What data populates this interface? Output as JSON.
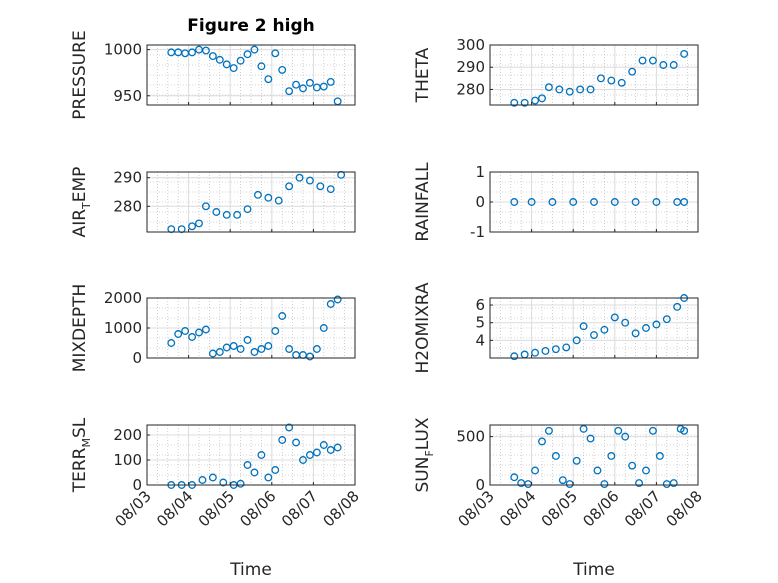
{
  "figure": {
    "title": "Figure 2 high"
  },
  "colors": {
    "marker": "#0072BD",
    "axis": "#262626",
    "grid": "#dcdcdc",
    "minor_grid": "#b0b0b0"
  },
  "x_axis": {
    "ticks": [
      "08/03",
      "08/04",
      "08/05",
      "08/06",
      "08/07",
      "08/08"
    ],
    "label": "Time"
  },
  "chart_data": [
    {
      "type": "scatter",
      "title": "Figure 2 high",
      "ylabel": "PRESSURE",
      "ylim": [
        940,
        1005
      ],
      "yticks": [
        "950",
        "1000"
      ],
      "xlabel": "",
      "x": [
        "08/03 14:00",
        "08/03 18:00",
        "08/03 22:00",
        "08/04 02:00",
        "08/04 06:00",
        "08/04 10:00",
        "08/04 14:00",
        "08/04 18:00",
        "08/04 22:00",
        "08/05 02:00",
        "08/05 06:00",
        "08/05 10:00",
        "08/05 14:00",
        "08/05 18:00",
        "08/05 22:00",
        "08/06 02:00",
        "08/06 06:00",
        "08/06 10:00",
        "08/06 14:00",
        "08/06 18:00",
        "08/06 22:00",
        "08/07 02:00",
        "08/07 06:00",
        "08/07 10:00",
        "08/07 14:00"
      ],
      "y": [
        997,
        997,
        996,
        997,
        1000,
        999,
        993,
        989,
        984,
        980,
        988,
        995,
        1000,
        982,
        968,
        996,
        978,
        955,
        962,
        958,
        964,
        959,
        960,
        965,
        944
      ],
      "grid": true
    },
    {
      "type": "scatter",
      "ylabel": "THETA",
      "ylim": [
        273,
        300
      ],
      "yticks": [
        "280",
        "290",
        "300"
      ],
      "x": [
        "08/03 14:00",
        "08/03 20:00",
        "08/04 02:00",
        "08/04 06:00",
        "08/04 10:00",
        "08/04 16:00",
        "08/04 22:00",
        "08/05 04:00",
        "08/05 10:00",
        "08/05 16:00",
        "08/05 22:00",
        "08/06 04:00",
        "08/06 10:00",
        "08/06 16:00",
        "08/06 22:00",
        "08/07 04:00",
        "08/07 10:00",
        "08/07 16:00"
      ],
      "y": [
        274,
        274,
        275,
        276,
        281,
        280,
        279,
        280,
        280,
        285,
        284,
        283,
        288,
        293,
        293,
        291,
        291,
        296
      ],
      "grid": true
    },
    {
      "type": "scatter",
      "ylabel": "AIR_TEMP",
      "ylim": [
        271,
        292
      ],
      "yticks": [
        "280",
        "290"
      ],
      "x": [
        "08/03 14:00",
        "08/03 20:00",
        "08/04 02:00",
        "08/04 06:00",
        "08/04 10:00",
        "08/04 16:00",
        "08/04 22:00",
        "08/05 04:00",
        "08/05 10:00",
        "08/05 16:00",
        "08/05 22:00",
        "08/06 04:00",
        "08/06 10:00",
        "08/06 16:00",
        "08/06 22:00",
        "08/07 04:00",
        "08/07 10:00",
        "08/07 16:00"
      ],
      "y": [
        272,
        272,
        273,
        274,
        280,
        278,
        277,
        277,
        279,
        284,
        283,
        282,
        287,
        290,
        289,
        287,
        286,
        291
      ],
      "grid": true
    },
    {
      "type": "scatter",
      "ylabel": "RAINFALL",
      "ylim": [
        -1,
        1
      ],
      "yticks": [
        "-1",
        "0",
        "1"
      ],
      "x": [
        "08/03 14:00",
        "08/04 00:00",
        "08/04 12:00",
        "08/05 00:00",
        "08/05 12:00",
        "08/06 00:00",
        "08/06 12:00",
        "08/07 00:00",
        "08/07 12:00",
        "08/07 16:00"
      ],
      "y": [
        0,
        0,
        0,
        0,
        0,
        0,
        0,
        0,
        0,
        0
      ],
      "grid": true
    },
    {
      "type": "scatter",
      "ylabel": "MIXDEPTH",
      "ylim": [
        0,
        2000
      ],
      "yticks": [
        "0",
        "1000",
        "2000"
      ],
      "x": [
        "08/03 14:00",
        "08/03 18:00",
        "08/03 22:00",
        "08/04 02:00",
        "08/04 06:00",
        "08/04 10:00",
        "08/04 14:00",
        "08/04 18:00",
        "08/04 22:00",
        "08/05 02:00",
        "08/05 06:00",
        "08/05 10:00",
        "08/05 14:00",
        "08/05 18:00",
        "08/05 22:00",
        "08/06 02:00",
        "08/06 06:00",
        "08/06 10:00",
        "08/06 14:00",
        "08/06 18:00",
        "08/06 22:00",
        "08/07 02:00",
        "08/07 06:00",
        "08/07 10:00",
        "08/07 14:00"
      ],
      "y": [
        500,
        800,
        900,
        700,
        850,
        950,
        150,
        200,
        350,
        400,
        300,
        600,
        200,
        300,
        400,
        900,
        1400,
        300,
        100,
        100,
        50,
        300,
        1000,
        1800,
        1950
      ],
      "grid": true
    },
    {
      "type": "scatter",
      "ylabel": "H2OMIXRA",
      "ylim": [
        3.0,
        6.4
      ],
      "yticks": [
        "4",
        "5",
        "6"
      ],
      "x": [
        "08/03 14:00",
        "08/03 20:00",
        "08/04 02:00",
        "08/04 08:00",
        "08/04 14:00",
        "08/04 20:00",
        "08/05 02:00",
        "08/05 06:00",
        "08/05 12:00",
        "08/05 18:00",
        "08/06 00:00",
        "08/06 06:00",
        "08/06 12:00",
        "08/06 18:00",
        "08/07 00:00",
        "08/07 06:00",
        "08/07 12:00",
        "08/07 16:00"
      ],
      "y": [
        3.1,
        3.2,
        3.3,
        3.4,
        3.5,
        3.6,
        4.0,
        4.8,
        4.3,
        4.6,
        5.3,
        5.0,
        4.4,
        4.7,
        4.9,
        5.2,
        5.9,
        6.4
      ],
      "grid": true
    },
    {
      "type": "scatter",
      "ylabel": "TERR_MSL",
      "ylim": [
        0,
        240
      ],
      "yticks": [
        "0",
        "100",
        "200"
      ],
      "x": [
        "08/03 14:00",
        "08/03 20:00",
        "08/04 02:00",
        "08/04 08:00",
        "08/04 14:00",
        "08/04 20:00",
        "08/05 02:00",
        "08/05 06:00",
        "08/05 10:00",
        "08/05 14:00",
        "08/05 18:00",
        "08/05 22:00",
        "08/06 02:00",
        "08/06 06:00",
        "08/06 10:00",
        "08/06 14:00",
        "08/06 18:00",
        "08/06 22:00",
        "08/07 02:00",
        "08/07 06:00",
        "08/07 10:00",
        "08/07 14:00"
      ],
      "y": [
        0,
        0,
        0,
        20,
        30,
        10,
        0,
        5,
        80,
        50,
        120,
        30,
        60,
        180,
        230,
        170,
        100,
        120,
        130,
        160,
        140,
        150
      ],
      "grid": true
    },
    {
      "type": "scatter",
      "ylabel": "SUN_FLUX",
      "ylim": [
        0,
        620
      ],
      "yticks": [
        "0",
        "500"
      ],
      "x": [
        "08/03 14:00",
        "08/03 18:00",
        "08/03 22:00",
        "08/04 02:00",
        "08/04 06:00",
        "08/04 10:00",
        "08/04 14:00",
        "08/04 18:00",
        "08/04 22:00",
        "08/05 02:00",
        "08/05 06:00",
        "08/05 10:00",
        "08/05 14:00",
        "08/05 18:00",
        "08/05 22:00",
        "08/06 02:00",
        "08/06 06:00",
        "08/06 10:00",
        "08/06 14:00",
        "08/06 18:00",
        "08/06 22:00",
        "08/07 02:00",
        "08/07 06:00",
        "08/07 10:00",
        "08/07 14:00",
        "08/07 16:00"
      ],
      "y": [
        80,
        20,
        10,
        150,
        450,
        560,
        300,
        50,
        10,
        250,
        580,
        480,
        150,
        10,
        300,
        560,
        500,
        200,
        20,
        150,
        560,
        300,
        10,
        20,
        580,
        560
      ],
      "grid": true
    }
  ]
}
